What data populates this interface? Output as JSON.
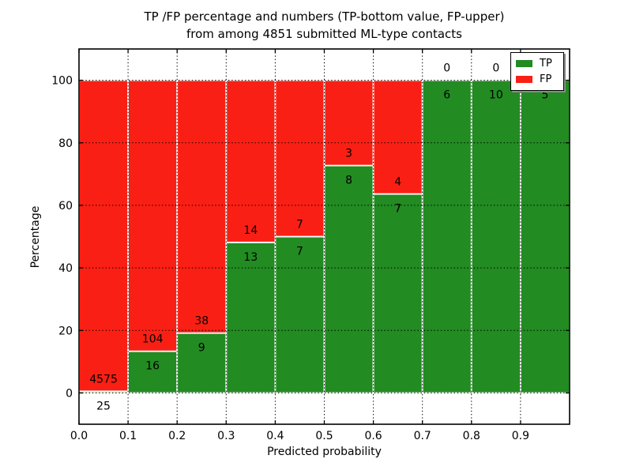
{
  "chart_data": {
    "type": "bar",
    "stacked": true,
    "title_line1": "TP /FP percentage and numbers (TP-bottom value, FP-upper)",
    "title_line2": "from among 4851 submitted ML-type contacts",
    "xlabel": "Predicted probability",
    "ylabel": "Percentage",
    "x_range": [
      0.0,
      1.0
    ],
    "ylim": [
      -10,
      110
    ],
    "x_tick_labels": [
      "0.0",
      "0.1",
      "0.2",
      "0.3",
      "0.4",
      "0.5",
      "0.6",
      "0.7",
      "0.8",
      "0.9"
    ],
    "x_tick_values": [
      0.0,
      0.1,
      0.2,
      0.3,
      0.4,
      0.5,
      0.6,
      0.7,
      0.8,
      0.9
    ],
    "y_ticks": [
      0,
      20,
      40,
      60,
      80,
      100
    ],
    "grid": true,
    "grid_style": "dotted",
    "legend_position": "upper-right",
    "legend": [
      {
        "label": "TP",
        "color": "#228b22"
      },
      {
        "label": "FP",
        "color": "#fa1f14"
      }
    ],
    "colors": {
      "tp": "#228b22",
      "fp": "#fa1f14",
      "bar_edge": "#ffffff",
      "grid": "#000000"
    },
    "bins": [
      {
        "from": 0.0,
        "to": 0.1,
        "tp": 25,
        "fp": 4575
      },
      {
        "from": 0.1,
        "to": 0.2,
        "tp": 16,
        "fp": 104
      },
      {
        "from": 0.2,
        "to": 0.3,
        "tp": 9,
        "fp": 38
      },
      {
        "from": 0.3,
        "to": 0.4,
        "tp": 13,
        "fp": 14
      },
      {
        "from": 0.4,
        "to": 0.5,
        "tp": 7,
        "fp": 7
      },
      {
        "from": 0.5,
        "to": 0.6,
        "tp": 8,
        "fp": 3
      },
      {
        "from": 0.6,
        "to": 0.7,
        "tp": 7,
        "fp": 4
      },
      {
        "from": 0.7,
        "to": 0.8,
        "tp": 6,
        "fp": 0
      },
      {
        "from": 0.8,
        "to": 0.9,
        "tp": 10,
        "fp": 0
      },
      {
        "from": 0.9,
        "to": 1.0,
        "tp": 5,
        "fp": 0
      }
    ]
  }
}
